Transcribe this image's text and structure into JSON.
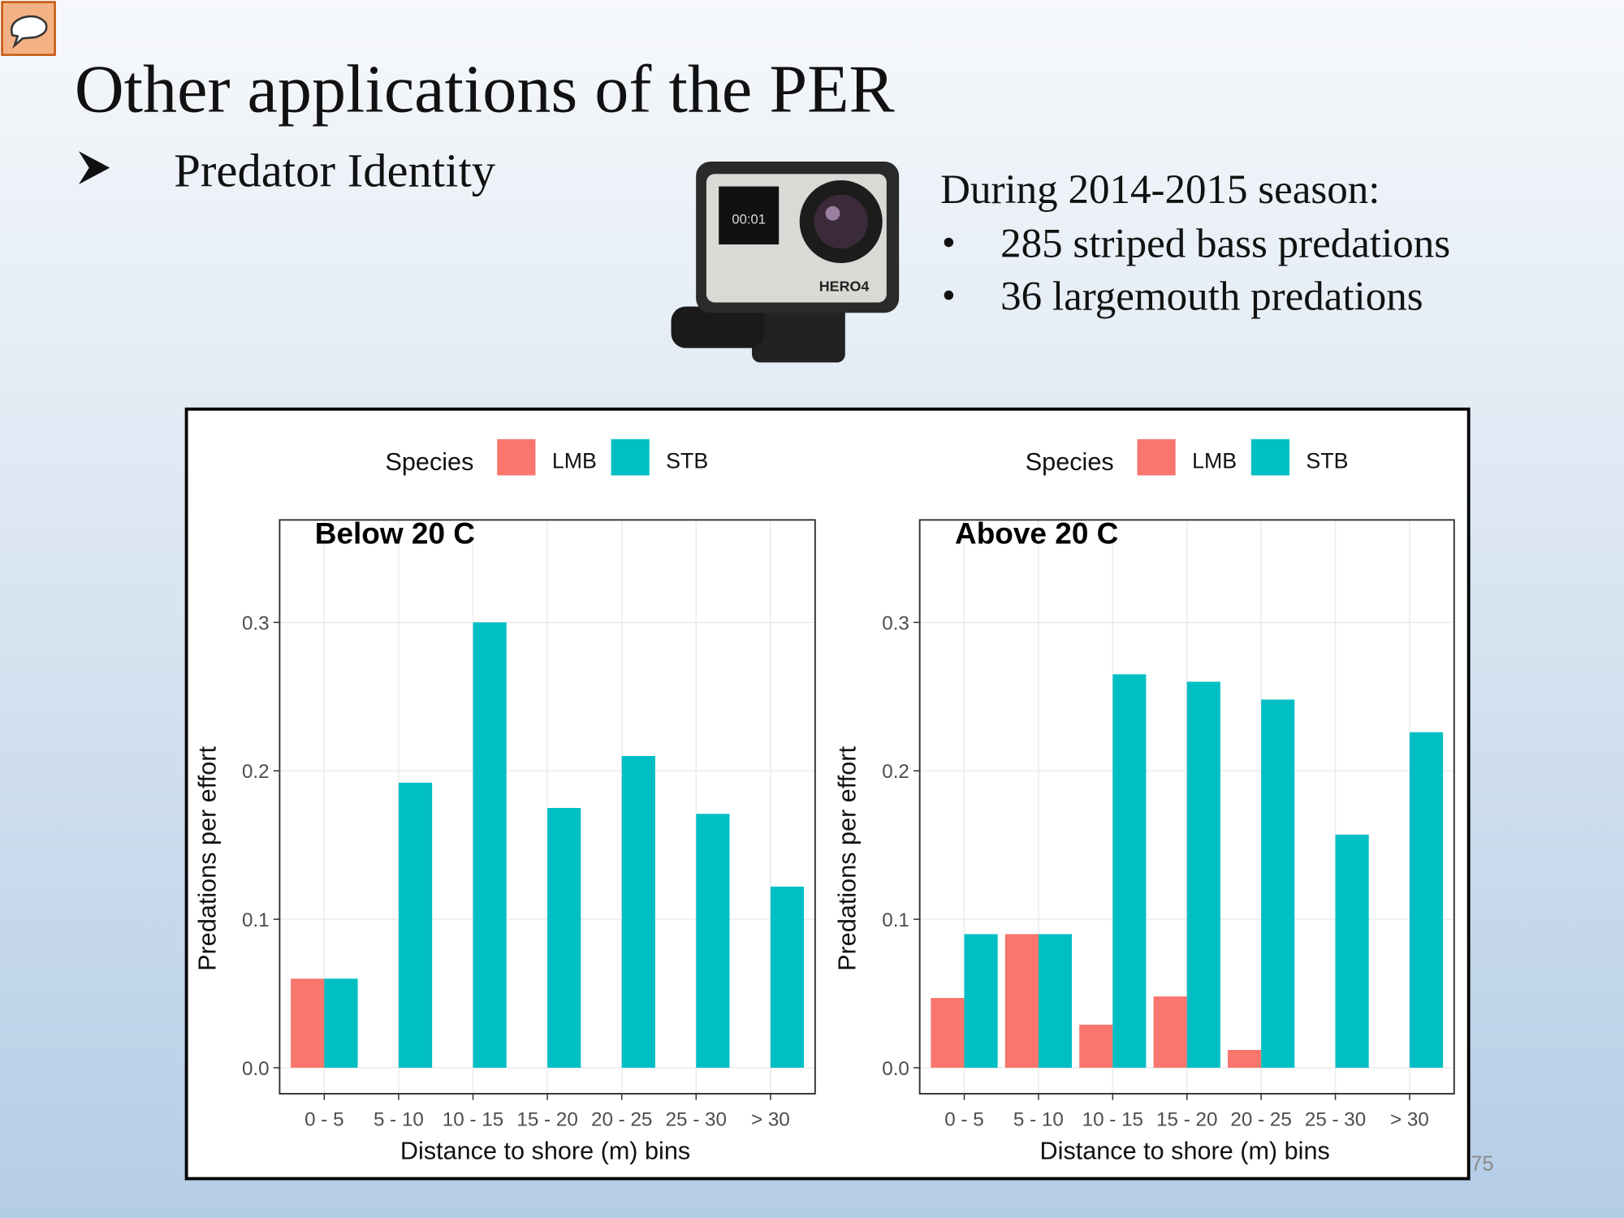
{
  "slide": {
    "title": "Other applications of the PER",
    "bullet": "Predator Identity",
    "note_heading": "During 2014-2015 season:",
    "note_items": [
      "285 striped bass predations",
      "36 largemouth predations"
    ],
    "camera_label": "HERO4",
    "camera_screen": "00:01",
    "page_number": "75"
  },
  "chart_data": [
    {
      "type": "bar",
      "title": "Below 20 C",
      "legend_title": "Species",
      "legend": "top",
      "grid": true,
      "x_label": "Distance to shore (m) bins",
      "y_label": "Predations per effort",
      "categories": [
        "0 - 5",
        "5 - 10",
        "10 - 15",
        "15 - 20",
        "20 - 25",
        "25 - 30",
        "> 30"
      ],
      "series": [
        {
          "name": "LMB",
          "color": "#F8766D",
          "values": [
            0.06,
            null,
            null,
            null,
            null,
            null,
            null
          ]
        },
        {
          "name": "STB",
          "color": "#00BFC4",
          "values": [
            0.06,
            0.192,
            0.3,
            0.175,
            0.21,
            0.171,
            0.122
          ]
        }
      ],
      "ylim": [
        -0.0175,
        0.369
      ],
      "yticks": [
        {
          "value": 0,
          "label": "0.0"
        },
        0.1,
        0.2,
        0.3
      ]
    },
    {
      "type": "bar",
      "title": "Above 20 C",
      "legend_title": "Species",
      "legend": "top",
      "grid": true,
      "x_label": "Distance to shore (m) bins",
      "y_label": "Predations per effort",
      "categories": [
        "0 - 5",
        "5 - 10",
        "10 - 15",
        "15 - 20",
        "20 - 25",
        "25 - 30",
        "> 30"
      ],
      "series": [
        {
          "name": "LMB",
          "color": "#F8766D",
          "values": [
            0.047,
            0.09,
            0.029,
            0.048,
            0.012,
            null,
            null
          ]
        },
        {
          "name": "STB",
          "color": "#00BFC4",
          "values": [
            0.09,
            0.09,
            0.265,
            0.26,
            0.248,
            0.157,
            0.226
          ]
        }
      ],
      "ylim": [
        -0.0175,
        0.369
      ],
      "yticks": [
        {
          "value": 0,
          "label": "0.0"
        },
        0.1,
        0.2,
        0.3
      ]
    }
  ]
}
